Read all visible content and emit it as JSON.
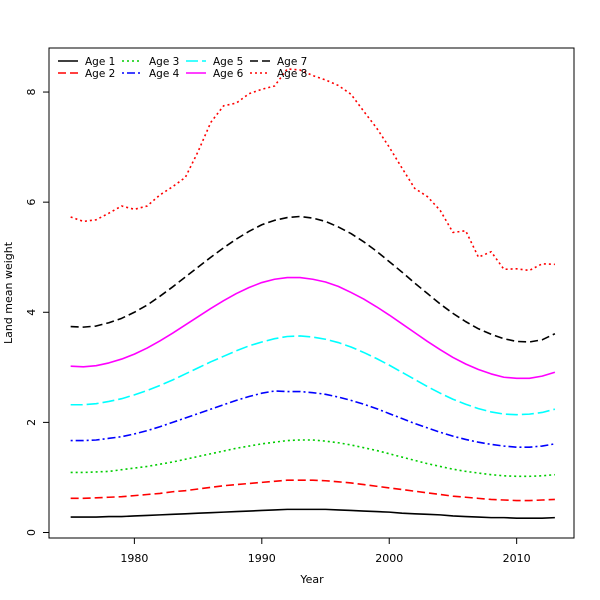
{
  "chart_data": {
    "type": "line",
    "title": "",
    "xlabel": "Year",
    "ylabel": "Land mean weight",
    "xlim": [
      1973.3,
      2014.5
    ],
    "ylim": [
      -0.1,
      8.8
    ],
    "xticks": [
      1980,
      1990,
      2000,
      2010
    ],
    "yticks": [
      0,
      2,
      4,
      6,
      8
    ],
    "grid": false,
    "legend_position": "top-left",
    "x": [
      1975,
      1976,
      1977,
      1978,
      1979,
      1980,
      1981,
      1982,
      1983,
      1984,
      1985,
      1986,
      1987,
      1988,
      1989,
      1990,
      1991,
      1992,
      1993,
      1994,
      1995,
      1996,
      1997,
      1998,
      1999,
      2000,
      2001,
      2002,
      2003,
      2004,
      2005,
      2006,
      2007,
      2008,
      2009,
      2010,
      2011,
      2012,
      2013
    ],
    "series": [
      {
        "name": "Age 1",
        "color": "#000000",
        "dash": "solid",
        "values": [
          0.28,
          0.28,
          0.28,
          0.29,
          0.29,
          0.3,
          0.31,
          0.32,
          0.33,
          0.34,
          0.35,
          0.36,
          0.37,
          0.38,
          0.39,
          0.4,
          0.41,
          0.42,
          0.42,
          0.42,
          0.42,
          0.41,
          0.4,
          0.39,
          0.38,
          0.37,
          0.35,
          0.34,
          0.33,
          0.32,
          0.3,
          0.29,
          0.28,
          0.27,
          0.27,
          0.26,
          0.26,
          0.26,
          0.27
        ]
      },
      {
        "name": "Age 2",
        "color": "#ff0000",
        "dash": "dashed",
        "values": [
          0.62,
          0.62,
          0.63,
          0.64,
          0.65,
          0.67,
          0.69,
          0.71,
          0.74,
          0.76,
          0.79,
          0.82,
          0.85,
          0.87,
          0.89,
          0.91,
          0.93,
          0.95,
          0.95,
          0.95,
          0.94,
          0.92,
          0.9,
          0.87,
          0.84,
          0.81,
          0.78,
          0.75,
          0.72,
          0.69,
          0.66,
          0.64,
          0.62,
          0.6,
          0.59,
          0.58,
          0.58,
          0.59,
          0.6
        ]
      },
      {
        "name": "Age 3",
        "color": "#00cd00",
        "dash": "dotted",
        "values": [
          1.09,
          1.09,
          1.1,
          1.11,
          1.14,
          1.17,
          1.2,
          1.24,
          1.28,
          1.33,
          1.38,
          1.43,
          1.48,
          1.53,
          1.57,
          1.61,
          1.64,
          1.67,
          1.68,
          1.68,
          1.66,
          1.63,
          1.59,
          1.54,
          1.49,
          1.43,
          1.37,
          1.31,
          1.25,
          1.2,
          1.15,
          1.11,
          1.08,
          1.05,
          1.03,
          1.02,
          1.02,
          1.03,
          1.05
        ]
      },
      {
        "name": "Age 4",
        "color": "#0000ff",
        "dash": "dotdash",
        "values": [
          1.67,
          1.67,
          1.68,
          1.71,
          1.74,
          1.79,
          1.85,
          1.92,
          2.0,
          2.08,
          2.16,
          2.24,
          2.32,
          2.4,
          2.47,
          2.53,
          2.57,
          2.56,
          2.56,
          2.54,
          2.51,
          2.46,
          2.4,
          2.33,
          2.25,
          2.16,
          2.07,
          1.98,
          1.9,
          1.82,
          1.75,
          1.69,
          1.64,
          1.6,
          1.57,
          1.55,
          1.55,
          1.57,
          1.61
        ]
      },
      {
        "name": "Age 5",
        "color": "#00ffff",
        "dash": "longdash",
        "values": [
          2.32,
          2.32,
          2.34,
          2.38,
          2.43,
          2.5,
          2.58,
          2.67,
          2.77,
          2.88,
          2.99,
          3.1,
          3.2,
          3.3,
          3.39,
          3.46,
          3.52,
          3.56,
          3.57,
          3.55,
          3.51,
          3.45,
          3.37,
          3.27,
          3.16,
          3.04,
          2.91,
          2.78,
          2.65,
          2.53,
          2.42,
          2.33,
          2.25,
          2.19,
          2.15,
          2.14,
          2.15,
          2.18,
          2.24
        ]
      },
      {
        "name": "Age 6",
        "color": "#ff00ff",
        "dash": "solid",
        "values": [
          3.02,
          3.01,
          3.03,
          3.08,
          3.15,
          3.24,
          3.35,
          3.48,
          3.62,
          3.77,
          3.92,
          4.07,
          4.21,
          4.34,
          4.45,
          4.54,
          4.6,
          4.63,
          4.63,
          4.6,
          4.55,
          4.47,
          4.36,
          4.24,
          4.1,
          3.95,
          3.79,
          3.63,
          3.47,
          3.32,
          3.18,
          3.06,
          2.96,
          2.88,
          2.82,
          2.8,
          2.8,
          2.84,
          2.91
        ]
      },
      {
        "name": "Age 7",
        "color": "#000000",
        "dash": "dashed",
        "values": [
          3.74,
          3.73,
          3.75,
          3.81,
          3.89,
          4.0,
          4.13,
          4.29,
          4.46,
          4.64,
          4.82,
          5.0,
          5.17,
          5.33,
          5.47,
          5.59,
          5.67,
          5.72,
          5.74,
          5.71,
          5.65,
          5.55,
          5.43,
          5.28,
          5.11,
          4.92,
          4.73,
          4.53,
          4.34,
          4.15,
          3.98,
          3.83,
          3.7,
          3.6,
          3.52,
          3.47,
          3.46,
          3.5,
          3.61
        ]
      },
      {
        "name": "Age 8",
        "color": "#ff0000",
        "dash": "dotted",
        "values": [
          5.73,
          5.65,
          5.68,
          5.8,
          5.93,
          5.87,
          5.93,
          6.13,
          6.28,
          6.45,
          6.92,
          7.45,
          7.75,
          7.8,
          7.97,
          8.05,
          8.11,
          8.42,
          8.4,
          8.3,
          8.22,
          8.12,
          7.96,
          7.65,
          7.35,
          7.0,
          6.62,
          6.25,
          6.1,
          5.85,
          5.45,
          5.48,
          5.0,
          5.1,
          4.78,
          4.79,
          4.76,
          4.88,
          4.87
        ]
      }
    ]
  }
}
